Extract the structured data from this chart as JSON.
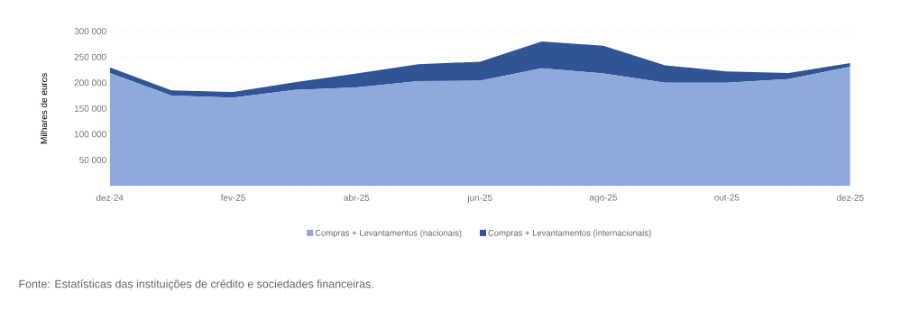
{
  "chart_data": {
    "type": "area",
    "stacked": true,
    "ylabel": "Milhares de euros",
    "x": [
      "2024-12",
      "2025-01",
      "2025-02",
      "2025-03",
      "2025-04",
      "2025-05",
      "2025-06",
      "2025-07",
      "2025-08",
      "2025-09",
      "2025-10",
      "2025-11",
      "2025-12"
    ],
    "series": [
      {
        "name": "Compras + Levantamentos (nacionais)",
        "color": "#8eaadb",
        "values": [
          219000,
          175000,
          171000,
          186000,
          191000,
          203000,
          204000,
          228000,
          218000,
          200000,
          200000,
          207000,
          231000
        ]
      },
      {
        "name": "Compras + Levantamentos (internacionais)",
        "color": "#2f5597",
        "values": [
          11000,
          10000,
          11000,
          15000,
          27000,
          33000,
          37000,
          52000,
          54000,
          34000,
          22000,
          12000,
          7000
        ]
      }
    ],
    "xlim": [
      "2024-12",
      "2025-12"
    ],
    "xticks": [
      {
        "value": "2024-12",
        "label": "dez-24"
      },
      {
        "value": "2025-02",
        "label": "fev-25"
      },
      {
        "value": "2025-04",
        "label": "abr-25"
      },
      {
        "value": "2025-06",
        "label": "jun-25"
      },
      {
        "value": "2025-08",
        "label": "ago-25"
      },
      {
        "value": "2025-10",
        "label": "out-25"
      },
      {
        "value": "2025-12",
        "label": "dez-25"
      }
    ],
    "ylim": [
      0,
      300000
    ],
    "yticks": [
      {
        "value": 0,
        "label": null
      },
      {
        "value": 50000,
        "label": "50 000"
      },
      {
        "value": 100000,
        "label": "100 000"
      },
      {
        "value": 150000,
        "label": "150 000"
      },
      {
        "value": 200000,
        "label": "200 000"
      },
      {
        "value": 250000,
        "label": "250 000"
      },
      {
        "value": 300000,
        "label": "300 000"
      }
    ],
    "grid": "y",
    "legend": "bottom",
    "annotations": [
      "Fonte: Estatísticas das instituições de crédito e sociedades financeiras."
    ]
  }
}
